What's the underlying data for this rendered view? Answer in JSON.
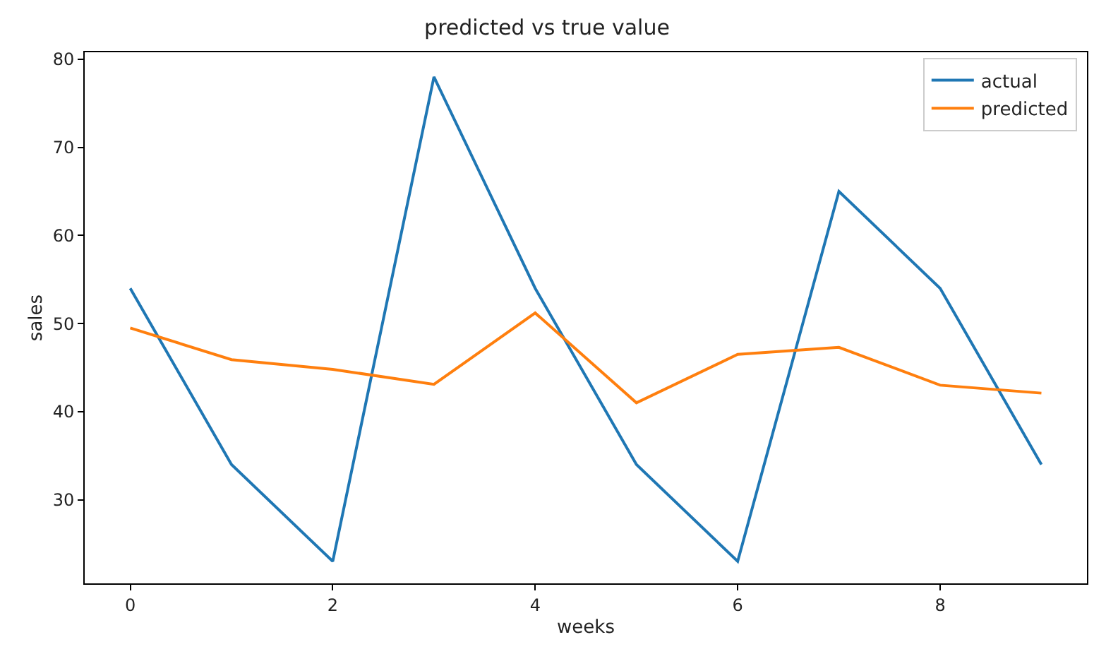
{
  "chart_data": {
    "type": "line",
    "title": "predicted vs true value",
    "xlabel": "weeks",
    "ylabel": "sales",
    "x": [
      0,
      1,
      2,
      3,
      4,
      5,
      6,
      7,
      8,
      9
    ],
    "series": [
      {
        "name": "actual",
        "color": "#1f77b4",
        "values": [
          54,
          34,
          23,
          78,
          54,
          34,
          23,
          65,
          54,
          34
        ]
      },
      {
        "name": "predicted",
        "color": "#ff7f0e",
        "values": [
          49.5,
          45.9,
          44.8,
          43.1,
          51.2,
          41.0,
          46.5,
          47.3,
          43.0,
          42.1
        ]
      }
    ],
    "xlim": [
      -0.45,
      9.45
    ],
    "xticks": [
      0,
      2,
      4,
      6,
      8
    ],
    "ylim": [
      20.5,
      80.8
    ],
    "yticks": [
      30,
      40,
      50,
      60,
      70,
      80
    ],
    "legend": "top right",
    "marker": "none",
    "line_style": "solid"
  }
}
